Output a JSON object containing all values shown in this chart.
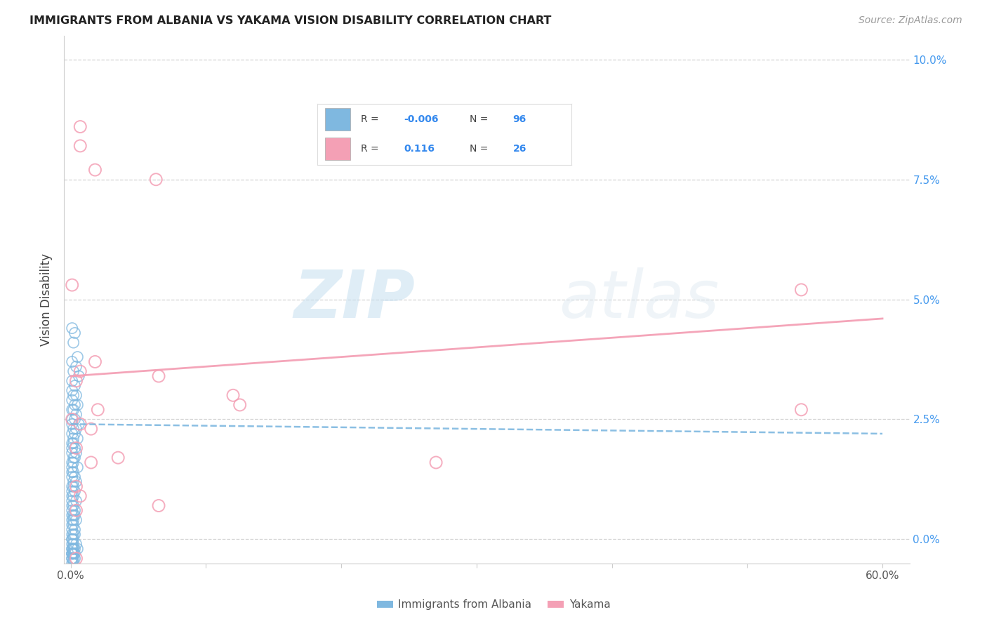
{
  "title": "IMMIGRANTS FROM ALBANIA VS YAKAMA VISION DISABILITY CORRELATION CHART",
  "source": "Source: ZipAtlas.com",
  "ylabel": "Vision Disability",
  "x_tick_vals": [
    0.0,
    0.1,
    0.2,
    0.3,
    0.4,
    0.5,
    0.6
  ],
  "x_tick_labels_bottom": [
    "0.0%",
    "",
    "",
    "",
    "",
    "",
    "60.0%"
  ],
  "y_tick_vals": [
    0.0,
    0.025,
    0.05,
    0.075,
    0.1
  ],
  "y_tick_labels": [
    "0.0%",
    "2.5%",
    "5.0%",
    "7.5%",
    "10.0%"
  ],
  "xlim": [
    -0.005,
    0.62
  ],
  "ylim": [
    -0.005,
    0.105
  ],
  "legend_entries": [
    "Immigrants from Albania",
    "Yakama"
  ],
  "blue_color": "#7fb8e0",
  "pink_color": "#f4a0b5",
  "blue_scatter": [
    [
      0.001,
      0.044
    ],
    [
      0.003,
      0.043
    ],
    [
      0.002,
      0.041
    ],
    [
      0.005,
      0.038
    ],
    [
      0.001,
      0.037
    ],
    [
      0.004,
      0.036
    ],
    [
      0.002,
      0.035
    ],
    [
      0.006,
      0.034
    ],
    [
      0.001,
      0.033
    ],
    [
      0.003,
      0.032
    ],
    [
      0.001,
      0.031
    ],
    [
      0.004,
      0.03
    ],
    [
      0.002,
      0.03
    ],
    [
      0.001,
      0.029
    ],
    [
      0.003,
      0.028
    ],
    [
      0.005,
      0.028
    ],
    [
      0.001,
      0.027
    ],
    [
      0.002,
      0.027
    ],
    [
      0.004,
      0.026
    ],
    [
      0.001,
      0.025
    ],
    [
      0.003,
      0.025
    ],
    [
      0.006,
      0.024
    ],
    [
      0.001,
      0.024
    ],
    [
      0.002,
      0.023
    ],
    [
      0.004,
      0.023
    ],
    [
      0.001,
      0.022
    ],
    [
      0.003,
      0.022
    ],
    [
      0.002,
      0.021
    ],
    [
      0.005,
      0.021
    ],
    [
      0.001,
      0.02
    ],
    [
      0.002,
      0.02
    ],
    [
      0.003,
      0.019
    ],
    [
      0.001,
      0.019
    ],
    [
      0.004,
      0.018
    ],
    [
      0.001,
      0.018
    ],
    [
      0.002,
      0.017
    ],
    [
      0.003,
      0.017
    ],
    [
      0.001,
      0.016
    ],
    [
      0.002,
      0.016
    ],
    [
      0.005,
      0.015
    ],
    [
      0.001,
      0.015
    ],
    [
      0.002,
      0.014
    ],
    [
      0.001,
      0.014
    ],
    [
      0.003,
      0.013
    ],
    [
      0.001,
      0.013
    ],
    [
      0.002,
      0.012
    ],
    [
      0.004,
      0.012
    ],
    [
      0.001,
      0.011
    ],
    [
      0.002,
      0.011
    ],
    [
      0.001,
      0.01
    ],
    [
      0.003,
      0.01
    ],
    [
      0.001,
      0.009
    ],
    [
      0.002,
      0.009
    ],
    [
      0.004,
      0.008
    ],
    [
      0.001,
      0.008
    ],
    [
      0.002,
      0.007
    ],
    [
      0.001,
      0.007
    ],
    [
      0.003,
      0.006
    ],
    [
      0.001,
      0.006
    ],
    [
      0.002,
      0.005
    ],
    [
      0.001,
      0.005
    ],
    [
      0.003,
      0.005
    ],
    [
      0.001,
      0.004
    ],
    [
      0.002,
      0.004
    ],
    [
      0.004,
      0.004
    ],
    [
      0.001,
      0.003
    ],
    [
      0.002,
      0.003
    ],
    [
      0.001,
      0.002
    ],
    [
      0.003,
      0.002
    ],
    [
      0.001,
      0.001
    ],
    [
      0.002,
      0.001
    ],
    [
      0.001,
      0.0
    ],
    [
      0.002,
      0.0
    ],
    [
      0.001,
      -0.001
    ],
    [
      0.002,
      -0.001
    ],
    [
      0.001,
      -0.002
    ],
    [
      0.002,
      -0.002
    ],
    [
      0.003,
      -0.002
    ],
    [
      0.001,
      -0.003
    ],
    [
      0.002,
      -0.003
    ],
    [
      0.001,
      -0.004
    ],
    [
      0.003,
      -0.004
    ],
    [
      0.001,
      -0.003
    ],
    [
      0.002,
      -0.003
    ],
    [
      0.005,
      -0.002
    ],
    [
      0.001,
      -0.004
    ],
    [
      0.002,
      -0.004
    ],
    [
      0.001,
      -0.005
    ],
    [
      0.002,
      -0.005
    ],
    [
      0.003,
      -0.003
    ],
    [
      0.001,
      -0.002
    ],
    [
      0.004,
      -0.001
    ],
    [
      0.001,
      -0.003
    ],
    [
      0.002,
      -0.002
    ],
    [
      0.001,
      0.0
    ],
    [
      0.003,
      0.001
    ]
  ],
  "pink_scatter": [
    [
      0.007,
      0.086
    ],
    [
      0.007,
      0.082
    ],
    [
      0.018,
      0.077
    ],
    [
      0.063,
      0.075
    ],
    [
      0.001,
      0.053
    ],
    [
      0.018,
      0.037
    ],
    [
      0.007,
      0.035
    ],
    [
      0.065,
      0.034
    ],
    [
      0.004,
      0.033
    ],
    [
      0.12,
      0.03
    ],
    [
      0.125,
      0.028
    ],
    [
      0.02,
      0.027
    ],
    [
      0.001,
      0.025
    ],
    [
      0.007,
      0.024
    ],
    [
      0.015,
      0.023
    ],
    [
      0.54,
      0.052
    ],
    [
      0.54,
      0.027
    ],
    [
      0.004,
      0.019
    ],
    [
      0.035,
      0.017
    ],
    [
      0.015,
      0.016
    ],
    [
      0.27,
      0.016
    ],
    [
      0.004,
      0.011
    ],
    [
      0.007,
      0.009
    ],
    [
      0.065,
      0.007
    ],
    [
      0.004,
      0.006
    ],
    [
      0.004,
      -0.004
    ]
  ],
  "blue_trend_x": [
    0.0,
    0.6
  ],
  "blue_trend_y": [
    0.024,
    0.022
  ],
  "pink_trend_x": [
    0.0,
    0.6
  ],
  "pink_trend_y": [
    0.034,
    0.046
  ],
  "watermark_zip": "ZIP",
  "watermark_atlas": "atlas",
  "background_color": "#ffffff",
  "grid_color": "#c8c8c8",
  "tick_color_x": "#555555",
  "tick_color_y_right": "#4499ee"
}
